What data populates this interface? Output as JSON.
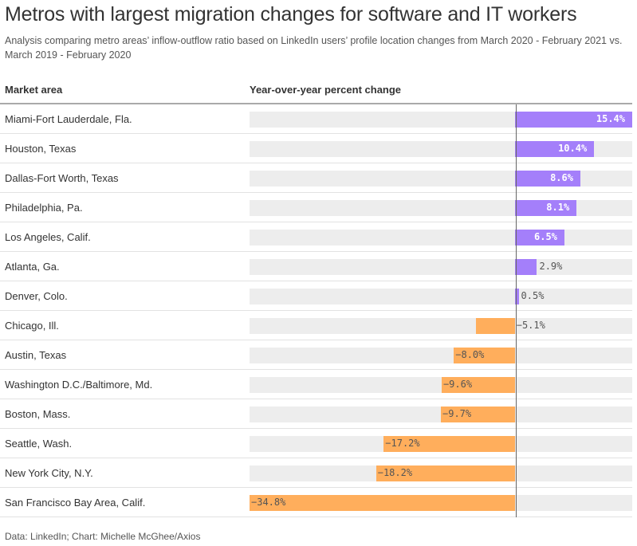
{
  "title": "Metros with largest migration changes for software and IT workers",
  "subtitle": "Analysis comparing metro areas’ inflow-outflow ratio based on LinkedIn users’ profile location changes from March 2020 - February 2021 vs. March 2019 - February 2020",
  "footer": "Data: LinkedIn; Chart: Michelle McGhee/Axios",
  "colors": {
    "positive": "#a47ffa",
    "negative": "#ffae5c",
    "track": "#ededed"
  },
  "chart_data": {
    "type": "bar",
    "orientation": "horizontal",
    "column_headers": [
      "Market area",
      "Year-over-year percent change"
    ],
    "categories": [
      "Miami-Fort Lauderdale, Fla.",
      "Houston, Texas",
      "Dallas-Fort Worth, Texas",
      "Philadelphia, Pa.",
      "Los Angeles, Calif.",
      "Atlanta, Ga.",
      "Denver, Colo.",
      "Chicago, Ill.",
      "Austin, Texas",
      "Washington D.C./Baltimore, Md.",
      "Boston, Mass.",
      "Seattle, Wash.",
      "New York City, N.Y.",
      "San Francisco Bay Area, Calif."
    ],
    "values": [
      15.4,
      10.4,
      8.6,
      8.1,
      6.5,
      2.9,
      0.5,
      -5.1,
      -8.0,
      -9.6,
      -9.7,
      -17.2,
      -18.2,
      -34.8
    ],
    "labels": [
      "15.4%",
      "10.4%",
      "8.6%",
      "8.1%",
      "6.5%",
      "2.9%",
      "0.5%",
      "−5.1%",
      "−8.0%",
      "−9.6%",
      "−9.7%",
      "−17.2%",
      "−18.2%",
      "−34.8%"
    ],
    "xlim": [
      -34.8,
      15.4
    ],
    "grid": false
  }
}
